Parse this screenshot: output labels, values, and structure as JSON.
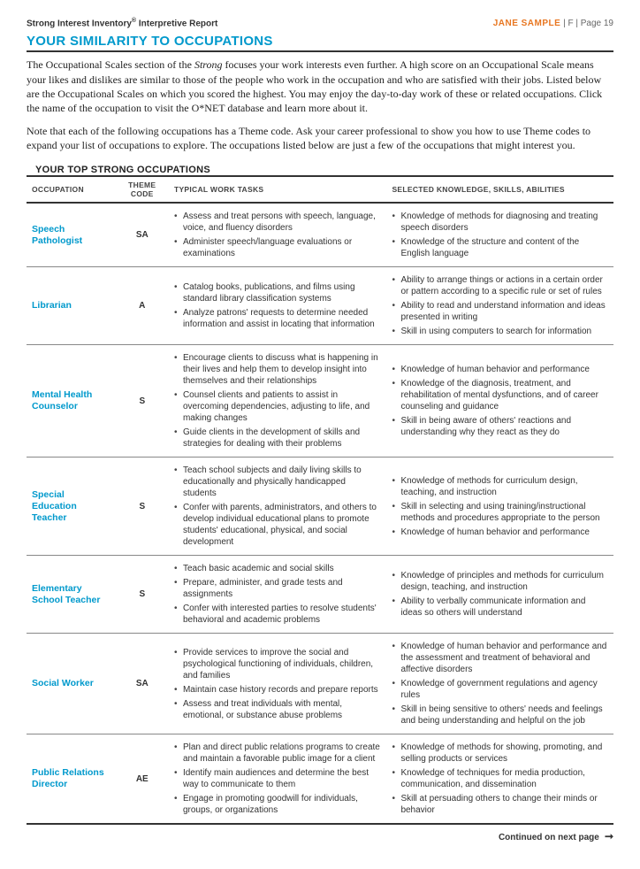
{
  "header": {
    "report_title_prefix": "Strong Interest Inventory",
    "report_title_suffix": " Interpretive Report",
    "sample_name": "JANE SAMPLE",
    "gender_page": " | F | Page 19"
  },
  "section_title": "YOUR SIMILARITY TO OCCUPATIONS",
  "intro_para1": "The Occupational Scales section of the Strong focuses your work interests even further. A high score on an Occupational Scale means your likes and dislikes are similar to those of the people who work in the occupation and who are satisfied with their jobs. Listed below are the Occupational Scales on which you scored the highest. You may enjoy the day-to-day work of these or related occupations. Click the name of the occupation to visit the O*NET database and learn more about it.",
  "intro_para2": "Note that each of the following occupations has a Theme code. Ask your career professional to show you how to use Theme codes to expand your list of occupations to explore. The occupations listed below are just a few of the occupations that might interest you.",
  "table_title": "YOUR TOP STRONG OCCUPATIONS",
  "columns": {
    "occupation": "OCCUPATION",
    "theme": "THEME CODE",
    "tasks": "TYPICAL WORK TASKS",
    "ksa": "SELECTED KNOWLEDGE, SKILLS, ABILITIES"
  },
  "rows": [
    {
      "name": "Speech Pathologist",
      "theme": "SA",
      "tasks": [
        "Assess and treat persons with speech, language, voice, and fluency disorders",
        "Administer speech/language evaluations or examinations"
      ],
      "ksa": [
        "Knowledge of methods for diagnosing and treating speech disorders",
        "Knowledge of the structure and content of the English language"
      ]
    },
    {
      "name": "Librarian",
      "theme": "A",
      "tasks": [
        "Catalog books, publications, and films using standard library classification systems",
        "Analyze patrons' requests to determine needed information and assist in locating that information"
      ],
      "ksa": [
        "Ability to arrange things or actions in a certain order or pattern according to a specific rule or set of rules",
        "Ability to read and understand information and ideas presented in writing",
        "Skill in using computers to search for information"
      ]
    },
    {
      "name": "Mental Health Counselor",
      "theme": "S",
      "tasks": [
        "Encourage clients to discuss what is happening in their lives and help them to develop insight into themselves and their relationships",
        "Counsel clients and patients to assist in overcoming dependencies, adjusting to life, and making changes",
        "Guide clients in the development of skills and strategies for dealing with their problems"
      ],
      "ksa": [
        "Knowledge of human behavior and performance",
        "Knowledge of the diagnosis, treatment, and rehabilitation of mental dysfunctions, and of career counseling and guidance",
        "Skill in being aware of others' reactions and understanding why they react as they do"
      ]
    },
    {
      "name": "Special Education Teacher",
      "theme": "S",
      "tasks": [
        "Teach school subjects and daily living skills to educationally and physically handicapped students",
        "Confer with parents, administrators, and others to develop individual educational plans to promote students' educational, physical, and social development"
      ],
      "ksa": [
        "Knowledge of methods for curriculum design, teaching, and instruction",
        "Skill in selecting and using training/instructional methods and procedures appropriate to the person",
        "Knowledge of human behavior and performance"
      ]
    },
    {
      "name": "Elementary School Teacher",
      "theme": "S",
      "tasks": [
        "Teach basic academic and social skills",
        "Prepare, administer, and grade tests and assignments",
        "Confer with interested parties to resolve students' behavioral and academic problems"
      ],
      "ksa": [
        "Knowledge of principles and methods for curriculum design, teaching, and instruction",
        "Ability to verbally communicate information and ideas so others will understand"
      ]
    },
    {
      "name": "Social Worker",
      "theme": "SA",
      "tasks": [
        "Provide services to improve the social and psychological functioning of individuals, children, and families",
        "Maintain case history records and prepare reports",
        "Assess and treat individuals with mental, emotional, or substance abuse problems"
      ],
      "ksa": [
        "Knowledge of human behavior and performance and the assessment and treatment of behavioral and affective disorders",
        "Knowledge of government regulations and agency rules",
        "Skill in being sensitive to others' needs and feelings and being understanding and helpful on the job"
      ]
    },
    {
      "name": "Public Relations Director",
      "theme": "AE",
      "tasks": [
        "Plan and direct public relations programs to create and maintain a favorable public image for a client",
        "Identify main audiences and determine the best way to communicate to them",
        "Engage in promoting goodwill for individuals, groups, or organizations"
      ],
      "ksa": [
        "Knowledge of methods for showing, promoting, and selling products or services",
        "Knowledge of techniques for media production, communication, and dissemination",
        "Skill at persuading others to change their minds or behavior"
      ]
    }
  ],
  "continued": "Continued on next page"
}
